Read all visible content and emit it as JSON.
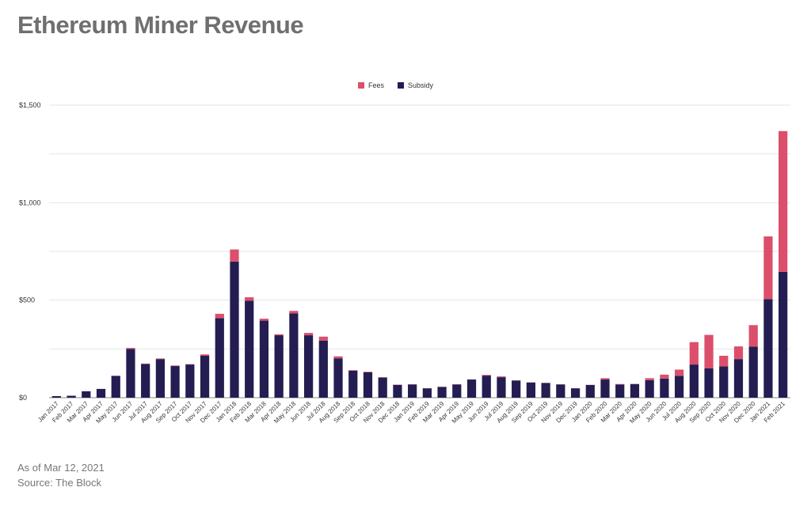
{
  "title": "Ethereum Miner Revenue",
  "footnote_date": "As of Mar 12, 2021",
  "footnote_source": "Source: The Block",
  "colors": {
    "fees": "#db4f6b",
    "subsidy": "#241d52",
    "grid": "#e6e6e6",
    "axis": "#888888"
  },
  "chart_data": {
    "type": "bar",
    "stacked": true,
    "title": "Ethereum Miner Revenue",
    "legend_position": "top-center",
    "grid": true,
    "ylim": [
      0,
      1500
    ],
    "yticks": [
      {
        "value": 0,
        "label": "$0"
      },
      {
        "value": 500,
        "label": "$500"
      },
      {
        "value": 1000,
        "label": "$1,000"
      },
      {
        "value": 1500,
        "label": "$1,500"
      }
    ],
    "categories": [
      "Jan 2017",
      "Feb 2017",
      "Mar 2017",
      "Apr 2017",
      "May 2017",
      "Jun 2017",
      "Jul 2017",
      "Aug 2017",
      "Sep 2017",
      "Oct 2017",
      "Nov 2017",
      "Dec 2017",
      "Jan 2018",
      "Feb 2018",
      "Mar 2018",
      "Apr 2018",
      "May 2018",
      "Jun 2018",
      "Jul 2018",
      "Aug 2018",
      "Sep 2018",
      "Oct 2018",
      "Nov 2018",
      "Dec 2018",
      "Jan 2019",
      "Feb 2019",
      "Mar 2019",
      "Apr 2019",
      "May 2019",
      "Jun 2019",
      "Jul 2019",
      "Aug 2019",
      "Sep 2019",
      "Oct 2019",
      "Nov 2019",
      "Dec 2019",
      "Jan 2020",
      "Feb 2020",
      "Mar 2020",
      "Apr 2020",
      "May 2020",
      "Jun 2020",
      "Jul 2020",
      "Aug 2020",
      "Sep 2020",
      "Oct 2020",
      "Nov 2020",
      "Dec 2020",
      "Jan 2021",
      "Feb 2021"
    ],
    "series": [
      {
        "name": "Subsidy",
        "values": [
          8,
          10,
          33,
          45,
          112,
          250,
          173,
          198,
          162,
          170,
          215,
          408,
          698,
          497,
          395,
          320,
          432,
          320,
          293,
          202,
          138,
          130,
          103,
          65,
          68,
          48,
          55,
          68,
          93,
          113,
          105,
          88,
          78,
          75,
          68,
          48,
          65,
          93,
          68,
          70,
          90,
          98,
          112,
          170,
          150,
          160,
          198,
          262,
          505,
          645
        ]
      },
      {
        "name": "Fees",
        "values": [
          0,
          0,
          0,
          0,
          0,
          5,
          2,
          3,
          3,
          2,
          7,
          22,
          62,
          18,
          10,
          5,
          13,
          12,
          20,
          10,
          3,
          3,
          2,
          2,
          1,
          1,
          1,
          1,
          1,
          4,
          4,
          1,
          1,
          1,
          1,
          1,
          1,
          7,
          2,
          1,
          10,
          20,
          32,
          115,
          172,
          55,
          65,
          110,
          322,
          722
        ]
      }
    ]
  }
}
